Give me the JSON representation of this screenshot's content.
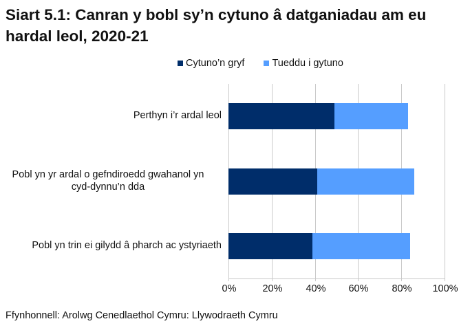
{
  "title": "Siart 5.1: Canran y bobl sy’n cytuno â datganiadau am eu hardal leol, 2020-21",
  "source": "Ffynhonnell: Arolwg Cenedlaethol Cymru: Llywodraeth Cymru",
  "colors": {
    "strongly_agree": "#002D6A",
    "tend_to_agree": "#559EFF",
    "grid": "#C9C9C9"
  },
  "legend": [
    {
      "label": "Cytuno’n gryf",
      "color": "#002D6A"
    },
    {
      "label": "Tueddu i gytuno",
      "color": "#559EFF"
    }
  ],
  "x_ticks": [
    "0%",
    "20%",
    "40%",
    "60%",
    "80%",
    "100%"
  ],
  "categories": [
    {
      "label_lines": [
        "Perthyn i’r ardal leol"
      ],
      "strongly": 49,
      "tend": 34
    },
    {
      "label_lines": [
        "Pobl yn yr ardal o gefndiroedd gwahanol yn",
        "cyd-dynnu’n dda"
      ],
      "strongly": 41,
      "tend": 45
    },
    {
      "label_lines": [
        "Pobl yn trin ei gilydd â pharch ac ystyriaeth"
      ],
      "strongly": 39,
      "tend": 45
    }
  ],
  "chart_data": {
    "type": "bar",
    "orientation": "horizontal",
    "stacked": true,
    "title": "Siart 5.1: Canran y bobl sy’n cytuno â datganiadau am eu hardal leol, 2020-21",
    "categories": [
      "Perthyn i’r ardal leol",
      "Pobl yn yr ardal o gefndiroedd gwahanol yn cyd-dynnu’n dda",
      "Pobl yn trin ei gilydd â pharch ac ystyriaeth"
    ],
    "series": [
      {
        "name": "Cytuno’n gryf",
        "values": [
          49,
          41,
          39
        ],
        "color": "#002D6A"
      },
      {
        "name": "Tueddu i gytuno",
        "values": [
          34,
          45,
          45
        ],
        "color": "#559EFF"
      }
    ],
    "xlabel": "",
    "ylabel": "",
    "xlim": [
      0,
      100
    ],
    "x_ticks": [
      "0%",
      "20%",
      "40%",
      "60%",
      "80%",
      "100%"
    ],
    "grid": "vertical",
    "legend_position": "top",
    "source": "Ffynhonnell: Arolwg Cenedlaethol Cymru: Llywodraeth Cymru"
  }
}
